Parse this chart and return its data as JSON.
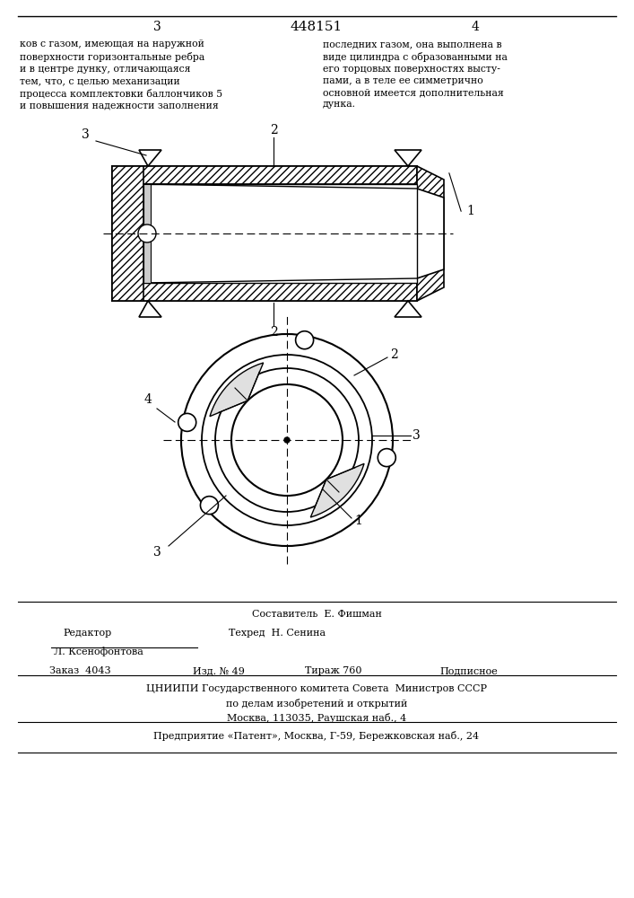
{
  "page_number_left": "3",
  "page_number_center": "448151",
  "page_number_right": "4",
  "text_left": "ков с газом, имеющая на наружной\nповерхности горизонтальные ребра\nи в центре дунку, отличающаяся\nтем, что, с целью механизации\nпроцесса комплектовки баллончиков 5\nи повышения надежности заполнения",
  "text_right": "последних газом, она выполнена в\nвиде цилиндра с образованными на\nего торцовых поверхностях высту-\nпами, а в теле ее симметрично\nосновной имеется дополнительная\nдунка.",
  "bottom_line1": "Составитель  Е. Фишман",
  "bottom_line2_label1": "Редактор",
  "bottom_line2_label2": "Техред  Н. Сенина",
  "bottom_line3": "Л. Ксенофонтова",
  "bottom_line4_a": "Заказ  4043",
  "bottom_line4_b": "Изд. № 49",
  "bottom_line4_c": "Тираж 760",
  "bottom_line4_d": "Подписное",
  "bottom_line5": "ЦНИИПИ Государственного комитета Совета  Министров СССР",
  "bottom_line6": "по делам изобретений и открытий",
  "bottom_line7": "Москва, 113035, Раушская наб., 4",
  "bottom_line8": "Предприятие «Патент», Москва, Г-59, Бережковская наб., 24",
  "bg_color": "#ffffff",
  "fig_width": 7.07,
  "fig_height": 10.0
}
